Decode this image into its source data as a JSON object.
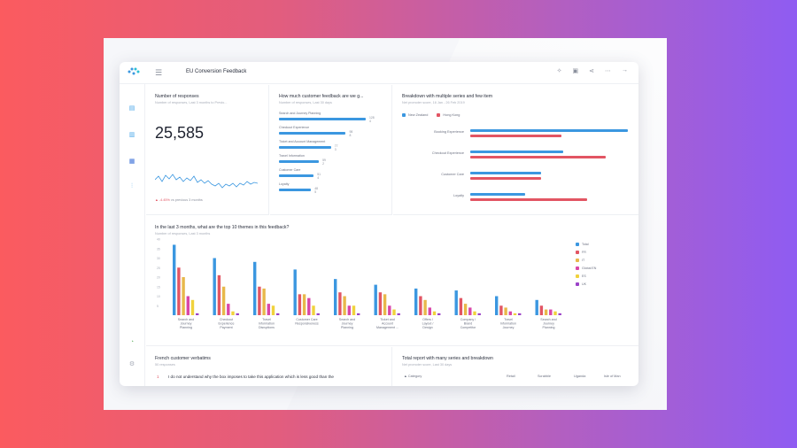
{
  "app": {
    "title": "EU Conversion Feedback",
    "menu_icon": "hamburger-icon"
  },
  "toolbar": {
    "icons": [
      "magic-wand-icon",
      "calendar-icon",
      "share-icon",
      "more-icon",
      "arrow-right-icon"
    ]
  },
  "sidebar": {
    "icons": [
      "chat-icon",
      "bar-chart-icon",
      "grid-icon",
      "filter-icon",
      "bell-icon",
      "settings-icon"
    ]
  },
  "responses": {
    "title": "Number of responses",
    "subtitle": "Number of responses, Last 3 months to Previo...",
    "value": "25,585",
    "delta": "-4.45%",
    "delta_label": "vs previous 3 months",
    "colors": {
      "line": "#3b97e0",
      "negative": "#e25563"
    }
  },
  "feedback": {
    "title": "How much customer feedback are we g...",
    "subtitle": "Number of responses, Last 30 days",
    "items": [
      {
        "label": "Search and Journey Planning",
        "value": "128"
      },
      {
        "label": "Checkout Experience",
        "value": "98"
      },
      {
        "label": "Ticket and Account Management",
        "value": "77"
      },
      {
        "label": "Travel Information",
        "value": "59"
      },
      {
        "label": "Customer Care",
        "value": "51"
      },
      {
        "label": "Loyalty",
        "value": "48"
      }
    ],
    "bar_fraction": [
      1.0,
      0.77,
      0.6,
      0.46,
      0.4,
      0.37
    ],
    "aux": [
      "4",
      "8",
      "3",
      "2",
      "4",
      "5"
    ]
  },
  "breakdown": {
    "title": "Breakdown with multiple series and few item",
    "subtitle": "Net promoter score, 16 Jan - 26 Feb 2019",
    "series": [
      {
        "name": "New Zealand",
        "color": "#3b97e0"
      },
      {
        "name": "Hong Kong",
        "color": "#e25563"
      }
    ],
    "categories": [
      "Booking Experience",
      "Checkout Experience",
      "Customer Care",
      "Loyalty"
    ],
    "values": [
      [
        1.0,
        0.58
      ],
      [
        0.59,
        0.86
      ],
      [
        0.45,
        0.45
      ],
      [
        0.35,
        0.74
      ]
    ]
  },
  "themes": {
    "title": "In the last 3 months, what are the top 10 themes in this feedback?",
    "subtitle": "Number of responses, Last 3 months",
    "yticks": [
      "40",
      "35",
      "30",
      "25",
      "20",
      "15",
      "10",
      "5",
      ""
    ],
    "series": [
      {
        "name": "Total",
        "color": "#3b97e0"
      },
      {
        "name": "FR",
        "color": "#e25563"
      },
      {
        "name": "IT",
        "color": "#e8b84a"
      },
      {
        "name": "Global EN",
        "color": "#d946a8"
      },
      {
        "name": "ES",
        "color": "#f0d23c"
      },
      {
        "name": "UK",
        "color": "#9b42c8"
      }
    ],
    "categories": [
      "Search and Journey Planning Experi...",
      "Checkout Experience Payment Proc...",
      "Travel Information Disruptions",
      "Customer Care Responsiveness",
      "Search and Journey Planning Trouble",
      "Ticket and Account Management ...",
      "Offers / Layout / Design",
      "Company / Brand Competitor",
      "Travel Information Journey Details",
      "Search and Journey Planning Stat..."
    ],
    "values": [
      [
        37,
        25,
        20,
        10,
        8,
        1
      ],
      [
        30,
        21,
        15,
        6,
        2,
        1
      ],
      [
        28,
        15,
        14,
        6,
        5,
        1
      ],
      [
        24,
        11,
        11,
        9,
        5,
        1
      ],
      [
        19,
        12,
        10,
        5,
        5,
        1
      ],
      [
        16,
        12,
        11,
        5,
        3,
        1
      ],
      [
        14,
        10,
        8,
        4,
        2,
        1
      ],
      [
        13,
        9,
        6,
        4,
        2,
        1
      ],
      [
        10,
        5,
        4,
        2,
        1,
        1
      ],
      [
        8,
        5,
        3,
        3,
        2,
        1
      ]
    ]
  },
  "verbatims": {
    "title": "French customer verbatims",
    "subtitle": "50 responses",
    "row_number": "1",
    "row_text": "I do not understand why the box imposes to take this application which is less good than the"
  },
  "report": {
    "title": "Total report with many series and breakdown",
    "subtitle": "Net promoter score, Last 30 days",
    "columns": [
      "Category",
      "Retail",
      "Scrabble",
      "Uganda",
      "Isle of Man"
    ]
  }
}
